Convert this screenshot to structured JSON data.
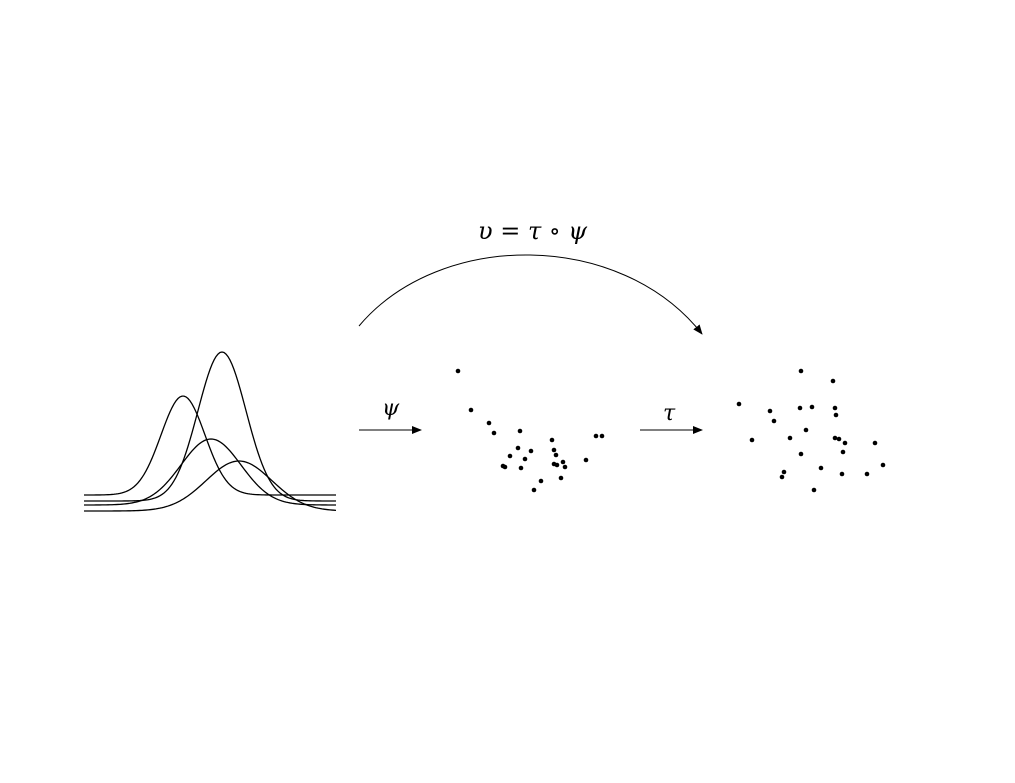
{
  "labels": {
    "composite": "υ = τ ∘ ψ",
    "psi": "ψ",
    "tau": "τ"
  },
  "colors": {
    "ink": "#000000",
    "background": "#ffffff"
  }
}
